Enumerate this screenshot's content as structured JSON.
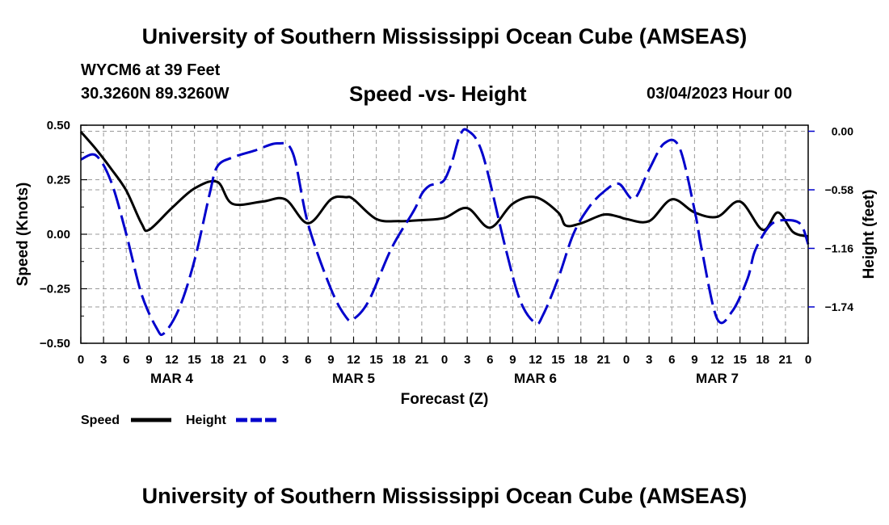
{
  "header": {
    "title": "University of Southern Mississippi Ocean Cube (AMSEAS)",
    "station": "WYCM6 at 39 Feet",
    "coords": "30.3260N  89.3260W",
    "chart_title": "Speed -vs- Height",
    "datetime": "03/04/2023 Hour 00"
  },
  "footer": {
    "title": "University of Southern Mississippi Ocean Cube (AMSEAS)"
  },
  "colors": {
    "speed": "#000000",
    "height": "#0000cc",
    "grid": "#999999"
  },
  "chart_data": {
    "type": "line",
    "title": "Speed -vs- Height",
    "xlabel": "Forecast (Z)",
    "ylabel_left": "Speed (Knots)",
    "ylabel_right": "Height (feet)",
    "x_range_hours": [
      0,
      96
    ],
    "ylim_left": [
      -0.5,
      0.5
    ],
    "ylim_right": [
      -2.1,
      0.06
    ],
    "x_tick_labels": [
      "0",
      "3",
      "6",
      "9",
      "12",
      "15",
      "18",
      "21",
      "0",
      "3",
      "6",
      "9",
      "12",
      "15",
      "18",
      "21",
      "0",
      "3",
      "6",
      "9",
      "12",
      "15",
      "18",
      "21",
      "0",
      "3",
      "6",
      "9",
      "12",
      "15",
      "18",
      "21",
      "0"
    ],
    "date_labels": [
      {
        "label": "MAR 4",
        "hour": 12
      },
      {
        "label": "MAR 5",
        "hour": 36
      },
      {
        "label": "MAR 6",
        "hour": 60
      },
      {
        "label": "MAR 7",
        "hour": 84
      }
    ],
    "y_left_ticks": [
      {
        "value": 0.5,
        "label": "0.50"
      },
      {
        "value": 0.25,
        "label": "0.25"
      },
      {
        "value": 0.0,
        "label": "0.00"
      },
      {
        "value": -0.25,
        "label": "−0.25"
      },
      {
        "value": -0.5,
        "label": "−0.50"
      }
    ],
    "y_right_ticks": [
      {
        "value": 0.0,
        "label": "0.00"
      },
      {
        "value": -0.58,
        "label": "−0.58"
      },
      {
        "value": -1.16,
        "label": "−1.16"
      },
      {
        "value": -1.74,
        "label": "−1.74"
      }
    ],
    "series": [
      {
        "name": "Speed",
        "axis": "left",
        "style": "solid",
        "hours": [
          0,
          2,
          4,
          6,
          8,
          9,
          12,
          15,
          18,
          20,
          24,
          27,
          30,
          33,
          35,
          36,
          39,
          42,
          45,
          48,
          51,
          54,
          57,
          60,
          63,
          64,
          66,
          69,
          71,
          72,
          75,
          78,
          81,
          84,
          87,
          90,
          92,
          94,
          96
        ],
        "values": [
          0.47,
          0.39,
          0.3,
          0.2,
          0.05,
          0.02,
          0.12,
          0.21,
          0.24,
          0.14,
          0.15,
          0.16,
          0.05,
          0.16,
          0.17,
          0.16,
          0.07,
          0.06,
          0.065,
          0.075,
          0.12,
          0.03,
          0.14,
          0.17,
          0.1,
          0.04,
          0.05,
          0.09,
          0.08,
          0.07,
          0.06,
          0.16,
          0.1,
          0.08,
          0.15,
          0.02,
          0.1,
          0.01,
          -0.01
        ]
      },
      {
        "name": "Height",
        "axis": "right",
        "style": "dashed",
        "hours": [
          0,
          2,
          4,
          6,
          8,
          10,
          11,
          13,
          15,
          17,
          18,
          20,
          23,
          26,
          28,
          30,
          33,
          35,
          36,
          38,
          41,
          44,
          45,
          46,
          47,
          48,
          49,
          50,
          51,
          53,
          56,
          58,
          60,
          61,
          63,
          65,
          67,
          69,
          71,
          73,
          75,
          77,
          79,
          81,
          82,
          84,
          86,
          88,
          89,
          91,
          93,
          95,
          96
        ],
        "values": [
          -0.28,
          -0.24,
          -0.5,
          -1.02,
          -1.61,
          -1.95,
          -2.0,
          -1.75,
          -1.28,
          -0.62,
          -0.35,
          -0.26,
          -0.19,
          -0.12,
          -0.22,
          -0.92,
          -1.56,
          -1.84,
          -1.86,
          -1.68,
          -1.16,
          -0.78,
          -0.62,
          -0.54,
          -0.52,
          -0.48,
          -0.3,
          -0.05,
          0.01,
          -0.22,
          -1.14,
          -1.68,
          -1.9,
          -1.82,
          -1.46,
          -1.02,
          -0.76,
          -0.6,
          -0.52,
          -0.67,
          -0.38,
          -0.12,
          -0.16,
          -0.78,
          -1.19,
          -1.86,
          -1.78,
          -1.46,
          -1.18,
          -0.93,
          -0.88,
          -0.92,
          -1.12
        ]
      }
    ],
    "legend": [
      "Speed",
      "Height"
    ],
    "legend_position": "bottom-left",
    "grid": true
  }
}
